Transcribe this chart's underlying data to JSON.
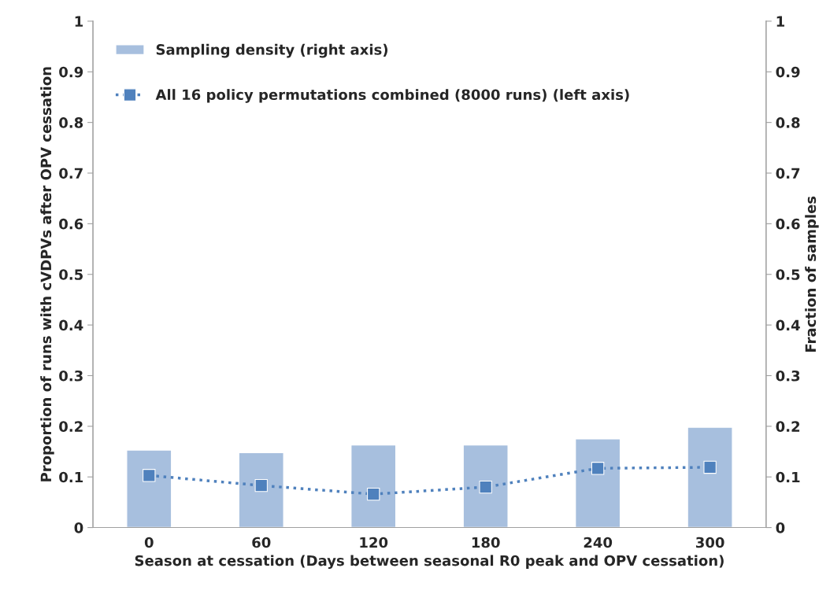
{
  "chart_data": {
    "type": "bar",
    "xlabel": "Season at cessation (Days between seasonal R0 peak and OPV cessation)",
    "ylabel": "Proportion of runs with cVDPVs after OPV cessation",
    "y2label": "Fraction of samples",
    "categories": [
      "0",
      "60",
      "120",
      "180",
      "240",
      "300"
    ],
    "series": [
      {
        "name": "Sampling density (right axis)",
        "axis": "y2",
        "color": "#a7bfde",
        "values": [
          0.153,
          0.148,
          0.163,
          0.163,
          0.175,
          0.198
        ]
      },
      {
        "name": "All 16 policy permutations combined (8000 runs) (left axis)",
        "type": "line",
        "color": "#4f81bd",
        "marker": "square",
        "line_style": "dotted",
        "values": [
          0.103,
          0.083,
          0.066,
          0.08,
          0.117,
          0.119
        ]
      }
    ],
    "ylim": [
      0,
      1
    ],
    "yticks": [
      0,
      0.1,
      0.2,
      0.3,
      0.4,
      0.5,
      0.6,
      0.7,
      0.8,
      0.9,
      1
    ],
    "y2lim": [
      0,
      1
    ],
    "y2ticks": [
      0,
      0.1,
      0.2,
      0.3,
      0.4,
      0.5,
      0.6,
      0.7,
      0.8,
      0.9,
      1
    ],
    "grid": false,
    "legend": "top left"
  }
}
